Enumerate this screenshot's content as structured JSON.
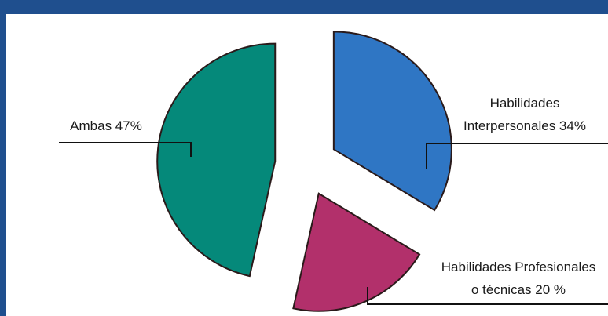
{
  "chart_data": {
    "type": "pie",
    "categories": [
      "Habilidades Interpersonales",
      "Habilidades Profesionales o técnicas",
      "Ambas"
    ],
    "values": [
      34,
      20,
      47
    ],
    "value_labels": [
      [
        "Habilidades",
        "Interpersonales 34%"
      ],
      [
        "Habilidades Profesionales",
        "o técnicas 20 %"
      ],
      [
        "Ambas 47%"
      ]
    ],
    "colors": [
      "#2f76c4",
      "#b2306b",
      "#05897a"
    ]
  }
}
